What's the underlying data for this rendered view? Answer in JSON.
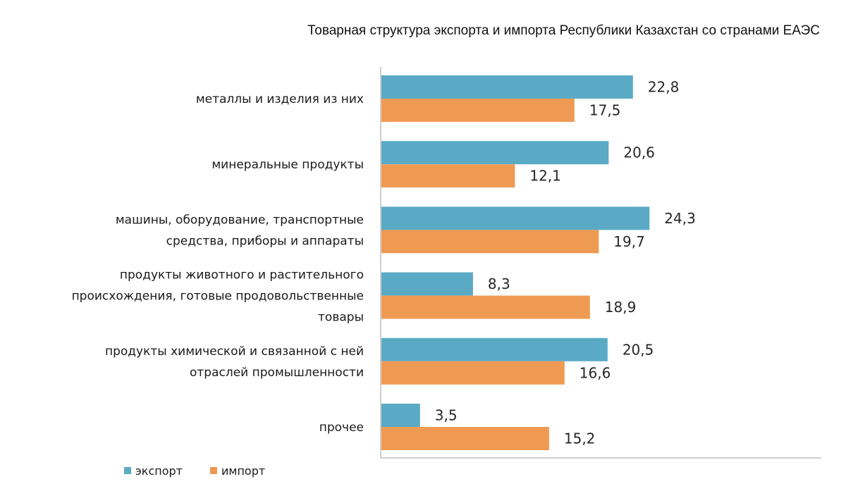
{
  "chart_data": {
    "type": "bar",
    "orientation": "horizontal",
    "title": "Товарная структура экспорта и импорта Республики Казахстан со странами ЕАЭС",
    "categories": [
      [
        "металлы и изделия из них"
      ],
      [
        "минеральные продукты"
      ],
      [
        "машины, оборудование, транспортные",
        "средства, приборы и аппараты"
      ],
      [
        "продукты животного и растительного",
        "происхождения, готовые продовольственные",
        "товары"
      ],
      [
        "продукты химической и связанной с ней",
        "отраслей промышленности"
      ],
      [
        "прочее"
      ]
    ],
    "series": [
      {
        "name": "экспорт",
        "color": "#5aaac6",
        "values": [
          22.8,
          20.6,
          24.3,
          8.3,
          20.5,
          3.5
        ],
        "labels": [
          "22,8",
          "20,6",
          "24,3",
          "8,3",
          "20,5",
          "3,5"
        ]
      },
      {
        "name": "импорт",
        "color": "#ef9a52",
        "values": [
          17.5,
          12.1,
          19.7,
          18.9,
          16.6,
          15.2
        ],
        "labels": [
          "17,5",
          "12,1",
          "19,7",
          "18,9",
          "16,6",
          "15,2"
        ]
      }
    ],
    "xlim": [
      0,
      40
    ],
    "grid": false,
    "legend_position": "bottom-left"
  }
}
